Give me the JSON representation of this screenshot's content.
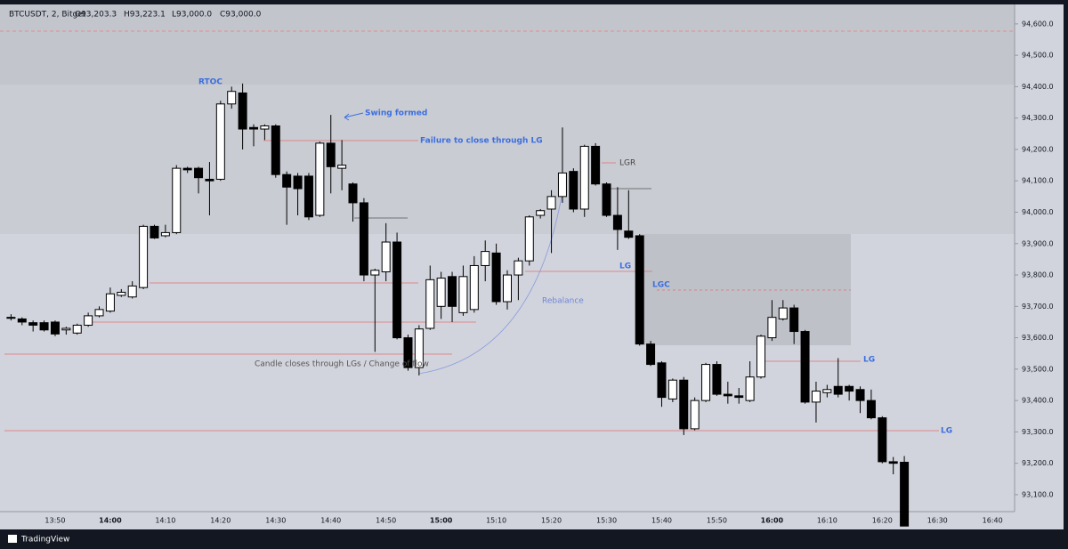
{
  "header": {
    "symbol": "BTCUSDT, 2, Bitget",
    "ohlc": [
      "O93,203.3",
      "H93,223.1",
      "L93,000.0",
      "C93,000.0"
    ]
  },
  "footer": {
    "brand": "TradingView"
  },
  "chart_data": {
    "type": "candlestick",
    "x": [
      "13:42",
      "13:44",
      "13:46",
      "13:48",
      "13:50",
      "13:52",
      "13:54",
      "13:56",
      "13:58",
      "14:00",
      "14:02",
      "14:04",
      "14:06",
      "14:08",
      "14:10",
      "14:12",
      "14:14",
      "14:16",
      "14:18",
      "14:20",
      "14:22",
      "14:24",
      "14:26",
      "14:28",
      "14:30",
      "14:32",
      "14:34",
      "14:36",
      "14:38",
      "14:40",
      "14:42",
      "14:44",
      "14:46",
      "14:48",
      "14:50",
      "14:52",
      "14:54",
      "14:56",
      "14:58",
      "15:00",
      "15:02",
      "15:04",
      "15:06",
      "15:08",
      "15:10",
      "15:12",
      "15:14",
      "15:16",
      "15:18",
      "15:20",
      "15:22",
      "15:24",
      "15:26",
      "15:28",
      "15:30",
      "15:32",
      "15:34",
      "15:36",
      "15:38",
      "15:40",
      "15:42",
      "15:44",
      "15:46",
      "15:48",
      "15:50",
      "15:52",
      "15:54",
      "15:56",
      "15:58",
      "16:00",
      "16:02",
      "16:04",
      "16:06",
      "16:08",
      "16:10",
      "16:12",
      "16:14",
      "16:16",
      "16:18",
      "16:20",
      "16:22",
      "16:24"
    ],
    "open": [
      93665,
      93660,
      93648,
      93648,
      93650,
      93625,
      93615,
      93640,
      93670,
      93685,
      93735,
      93730,
      93760,
      93955,
      93925,
      93935,
      94140,
      94140,
      94105,
      94105,
      94345,
      94380,
      94270,
      94265,
      94275,
      94120,
      94115,
      94115,
      93990,
      94220,
      94140,
      94090,
      94030,
      93800,
      93810,
      93905,
      93600,
      93505,
      93630,
      93700,
      93795,
      93680,
      93690,
      93830,
      93870,
      93715,
      93800,
      93845,
      93990,
      94010,
      94050,
      94130,
      94010,
      94210,
      94090,
      93990,
      93940,
      93925,
      93580,
      93520,
      93405,
      93465,
      93310,
      93400,
      93515,
      93420,
      93415,
      93400,
      93475,
      93600,
      93660,
      93695,
      93620,
      93395,
      93425,
      93445,
      93445,
      93435,
      93400,
      93345,
      93205,
      93203.3
    ],
    "high": [
      93675,
      93665,
      93655,
      93655,
      93655,
      93635,
      93645,
      93680,
      93700,
      93760,
      93755,
      93780,
      93960,
      93960,
      93960,
      94150,
      94145,
      94145,
      94160,
      94355,
      94400,
      94410,
      94280,
      94280,
      94280,
      94130,
      94125,
      94125,
      94225,
      94310,
      94230,
      94095,
      94045,
      93820,
      93965,
      93935,
      93610,
      93640,
      93830,
      93810,
      93810,
      93830,
      93860,
      93910,
      93900,
      93815,
      93855,
      93990,
      94010,
      94070,
      94270,
      94140,
      94215,
      94220,
      94095,
      94080,
      94070,
      93930,
      93590,
      93525,
      93470,
      93475,
      93410,
      93520,
      93525,
      93460,
      93440,
      93525,
      93610,
      93720,
      93720,
      93705,
      93625,
      93460,
      93450,
      93535,
      93450,
      93445,
      93435,
      93350,
      93220,
      93223.1
    ],
    "low": [
      93655,
      93640,
      93620,
      93620,
      93605,
      93610,
      93610,
      93635,
      93665,
      93680,
      93730,
      93725,
      93755,
      93915,
      93920,
      93930,
      94125,
      94060,
      93990,
      94100,
      94330,
      94200,
      94210,
      94230,
      94110,
      93960,
      93990,
      93975,
      93985,
      94060,
      94070,
      93970,
      93780,
      93555,
      93780,
      93595,
      93495,
      93480,
      93625,
      93660,
      93650,
      93670,
      93680,
      93780,
      93705,
      93690,
      93720,
      93830,
      93980,
      93870,
      94030,
      94000,
      93985,
      94085,
      93985,
      93880,
      93915,
      93575,
      93510,
      93380,
      93395,
      93290,
      93305,
      93395,
      93415,
      93390,
      93390,
      93395,
      93470,
      93590,
      93655,
      93580,
      93390,
      93330,
      93410,
      93410,
      93400,
      93360,
      93340,
      93200,
      93165,
      93000
    ],
    "close": [
      93662,
      93650,
      93640,
      93625,
      93612,
      93630,
      93640,
      93670,
      93690,
      93740,
      93745,
      93765,
      93955,
      93918,
      93935,
      94140,
      94135,
      94110,
      94100,
      94345,
      94385,
      94265,
      94265,
      94275,
      94120,
      94080,
      94075,
      93985,
      94220,
      94145,
      94150,
      94030,
      93800,
      93815,
      93905,
      93600,
      93505,
      93628,
      93785,
      93790,
      93700,
      93795,
      93830,
      93875,
      93715,
      93800,
      93845,
      93985,
      94005,
      94050,
      94125,
      94010,
      94210,
      94090,
      93990,
      93945,
      93920,
      93580,
      93515,
      93410,
      93465,
      93310,
      93400,
      93515,
      93420,
      93415,
      93410,
      93475,
      93605,
      93665,
      93695,
      93620,
      93395,
      93430,
      93435,
      93420,
      93430,
      93400,
      93345,
      93205,
      93200,
      93000
    ],
    "up_color": "#ffffff",
    "down_color": "#000000",
    "xlim": [
      "13:40",
      "16:44"
    ],
    "xticks": [
      "13:50",
      "14:00",
      "14:10",
      "14:20",
      "14:30",
      "14:40",
      "14:50",
      "15:00",
      "15:10",
      "15:20",
      "15:30",
      "15:40",
      "15:50",
      "16:00",
      "16:10",
      "16:20",
      "16:30",
      "16:40"
    ],
    "ylim": [
      93046,
      94662
    ],
    "yticks": [
      {
        "value": 93100,
        "label": "93,100.0"
      },
      {
        "value": 93200,
        "label": "93,200.0"
      },
      {
        "value": 93300,
        "label": "93,300.0"
      },
      {
        "value": 93400,
        "label": "93,400.0"
      },
      {
        "value": 93500,
        "label": "93,500.0"
      },
      {
        "value": 93600,
        "label": "93,600.0"
      },
      {
        "value": 93700,
        "label": "93,700.0"
      },
      {
        "value": 93800,
        "label": "93,800.0"
      },
      {
        "value": 93900,
        "label": "93,900.0"
      },
      {
        "value": 94000,
        "label": "94,000.0"
      },
      {
        "value": 94100,
        "label": "94,100.0"
      },
      {
        "value": 94200,
        "label": "94,200.0"
      },
      {
        "value": 94300,
        "label": "94,300.0"
      },
      {
        "value": 94400,
        "label": "94,400.0"
      },
      {
        "value": 94500,
        "label": "94,500.0"
      },
      {
        "value": 94600,
        "label": "94,600.0"
      }
    ],
    "annotations": [
      "RTOC",
      "Swing formed",
      "Failure to close through LG",
      "LGR",
      "LG",
      "LGC",
      "Rebalance",
      "Candle closes through LGs / Change of flow",
      "LG",
      "LG"
    ]
  }
}
